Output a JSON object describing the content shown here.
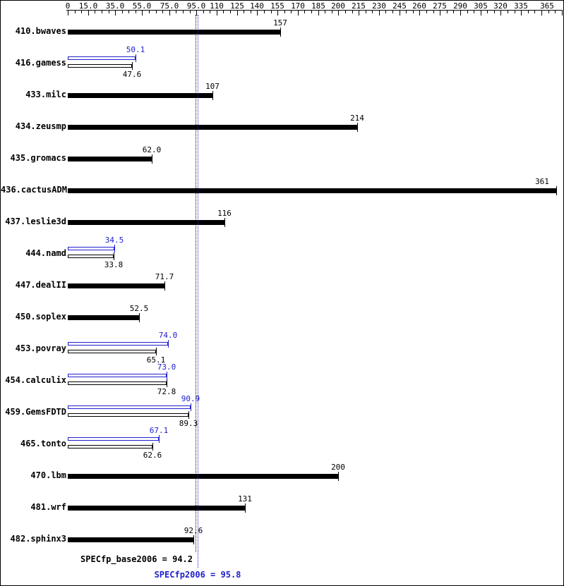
{
  "chart_data": {
    "type": "bar",
    "orientation": "horizontal",
    "axis": {
      "min": 0,
      "max": 367,
      "minor_tick_step": 5,
      "max_tick": 365,
      "ticks": [
        {
          "value": 0,
          "label": "0"
        },
        {
          "value": 15,
          "label": "15.0"
        },
        {
          "value": 35,
          "label": "35.0"
        },
        {
          "value": 55,
          "label": "55.0"
        },
        {
          "value": 75,
          "label": "75.0"
        },
        {
          "value": 95,
          "label": "95.0"
        },
        {
          "value": 110,
          "label": "110"
        },
        {
          "value": 125,
          "label": "125"
        },
        {
          "value": 140,
          "label": "140"
        },
        {
          "value": 155,
          "label": "155"
        },
        {
          "value": 170,
          "label": "170"
        },
        {
          "value": 185,
          "label": "185"
        },
        {
          "value": 200,
          "label": "200"
        },
        {
          "value": 215,
          "label": "215"
        },
        {
          "value": 230,
          "label": "230"
        },
        {
          "value": 245,
          "label": "245"
        },
        {
          "value": 260,
          "label": "260"
        },
        {
          "value": 275,
          "label": "275"
        },
        {
          "value": 290,
          "label": "290"
        },
        {
          "value": 305,
          "label": "305"
        },
        {
          "value": 320,
          "label": "320"
        },
        {
          "value": 335,
          "label": "335"
        },
        {
          "value": 350,
          "label": ""
        },
        {
          "value": 365,
          "label": "365"
        }
      ]
    },
    "series_names": [
      "peak",
      "base"
    ],
    "benchmarks": [
      {
        "name": "410.bwaves",
        "base": 157,
        "base_label": "157",
        "peak": null,
        "peak_label": null
      },
      {
        "name": "416.gamess",
        "base": 47.6,
        "base_label": "47.6",
        "peak": 50.1,
        "peak_label": "50.1"
      },
      {
        "name": "433.milc",
        "base": 107,
        "base_label": "107",
        "peak": null,
        "peak_label": null
      },
      {
        "name": "434.zeusmp",
        "base": 214,
        "base_label": "214",
        "peak": null,
        "peak_label": null
      },
      {
        "name": "435.gromacs",
        "base": 62.0,
        "base_label": "62.0",
        "peak": null,
        "peak_label": null
      },
      {
        "name": "436.cactusADM",
        "base": 361,
        "base_label": "361",
        "peak": null,
        "peak_label": null
      },
      {
        "name": "437.leslie3d",
        "base": 116,
        "base_label": "116",
        "peak": null,
        "peak_label": null
      },
      {
        "name": "444.namd",
        "base": 33.8,
        "base_label": "33.8",
        "peak": 34.5,
        "peak_label": "34.5"
      },
      {
        "name": "447.dealII",
        "base": 71.7,
        "base_label": "71.7",
        "peak": null,
        "peak_label": null
      },
      {
        "name": "450.soplex",
        "base": 52.5,
        "base_label": "52.5",
        "peak": null,
        "peak_label": null
      },
      {
        "name": "453.povray",
        "base": 65.1,
        "base_label": "65.1",
        "peak": 74.0,
        "peak_label": "74.0"
      },
      {
        "name": "454.calculix",
        "base": 72.8,
        "base_label": "72.8",
        "peak": 73.0,
        "peak_label": "73.0"
      },
      {
        "name": "459.GemsFDTD",
        "base": 89.3,
        "base_label": "89.3",
        "peak": 90.9,
        "peak_label": "90.9"
      },
      {
        "name": "465.tonto",
        "base": 62.6,
        "base_label": "62.6",
        "peak": 67.1,
        "peak_label": "67.1"
      },
      {
        "name": "470.lbm",
        "base": 200,
        "base_label": "200",
        "peak": null,
        "peak_label": null
      },
      {
        "name": "481.wrf",
        "base": 131,
        "base_label": "131",
        "peak": null,
        "peak_label": null
      },
      {
        "name": "482.sphinx3",
        "base": 92.6,
        "base_label": "92.6",
        "peak": null,
        "peak_label": null
      }
    ],
    "reference_lines": [
      {
        "value": 94.2,
        "color": "#000000",
        "style": "dotted",
        "series": "base"
      },
      {
        "value": 95.8,
        "color": "#2020cc",
        "style": "dotted",
        "series": "peak"
      }
    ],
    "summary": {
      "base_label": "SPECfp_base2006 = 94.2",
      "peak_label": "SPECfp2006 = 95.8"
    },
    "colors": {
      "base": "#000000",
      "peak": "#2020cc",
      "background": "#ffffff"
    }
  }
}
